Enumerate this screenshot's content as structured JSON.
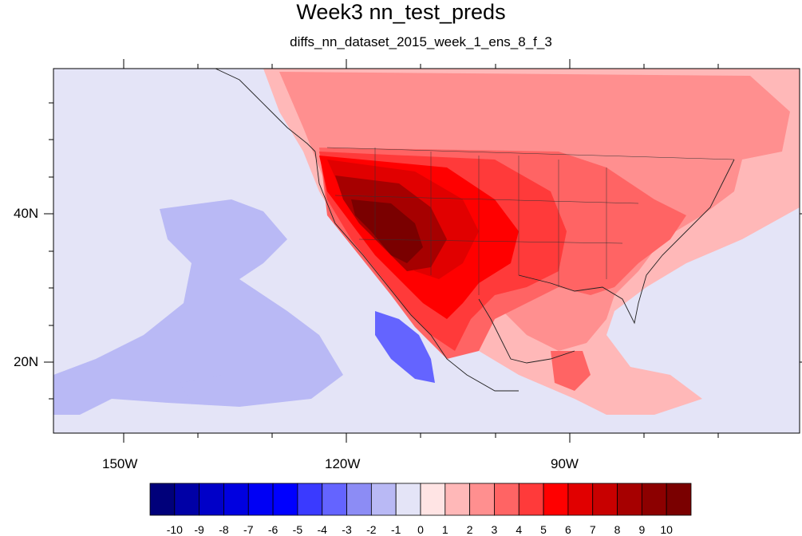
{
  "title": "Week3 nn_test_preds",
  "subtitle": "diffs_nn_dataset_2015_week_1_ens_8_f_3",
  "axes": {
    "lon_labels": [
      "150W",
      "120W",
      "90W"
    ],
    "lat_labels": [
      "40N",
      "20N"
    ]
  },
  "colorbar": {
    "labels": [
      "-10",
      "-9",
      "-8",
      "-7",
      "-6",
      "-5",
      "-4",
      "-3",
      "-2",
      "-1",
      "0",
      "1",
      "2",
      "3",
      "4",
      "5",
      "6",
      "7",
      "8",
      "9",
      "10"
    ],
    "colors": [
      "#00007a",
      "#0000a6",
      "#0000c8",
      "#0000e0",
      "#0000f5",
      "#0000ff",
      "#3a3aff",
      "#6464ff",
      "#8c8cf5",
      "#b9b9f5",
      "#e4e4f7",
      "#ffe4e4",
      "#ffb8b8",
      "#ff8f8f",
      "#ff6464",
      "#ff3a3a",
      "#ff0000",
      "#e10000",
      "#c80000",
      "#a60000",
      "#8c0000",
      "#7a0000"
    ]
  },
  "colors": {
    "ocean_background": "#e4e4f7",
    "land_warm": "#ff8f8f",
    "hot_core": "#8c0000"
  }
}
